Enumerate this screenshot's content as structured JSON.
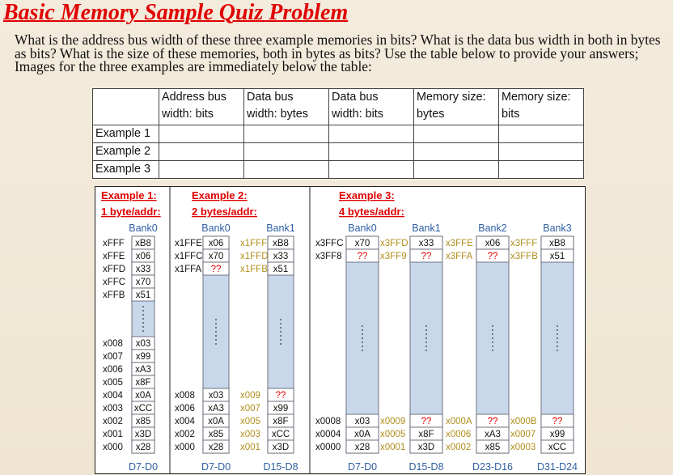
{
  "title": "Basic Memory Sample Quiz Problem",
  "question": "What is the address bus width of these three example memories in bits?  What is the data bus width in both in bytes as bits?  What is the size of these memories, both in bytes as bits?  Use the table below to provide your answers; Images for the three examples are immediately below the table:",
  "answer_table": {
    "headers": [
      [
        "Address bus",
        "width: bits"
      ],
      [
        "Data bus",
        "width: bytes"
      ],
      [
        "Data bus",
        "width: bits"
      ],
      [
        "Memory size:",
        "bytes"
      ],
      [
        "Memory size:",
        "bits"
      ]
    ],
    "rows": [
      "Example 1",
      "Example 2",
      "Example 3"
    ]
  },
  "colors": {
    "accent_red": "#e00000",
    "bank_fill": "#c8d8ea",
    "label_blue": "#2e5fa3",
    "address_gold": "#b08f1c"
  },
  "examples": [
    {
      "title_line1": "Example 1:",
      "title_line2": "1 byte/addr:",
      "banks": [
        {
          "name": "Bank0",
          "bus": "D7-D0",
          "top": [
            {
              "addr": "xFFF",
              "val": "xB8"
            },
            {
              "addr": "xFFE",
              "val": "x06"
            },
            {
              "addr": "xFFD",
              "val": "x33"
            },
            {
              "addr": "xFFC",
              "val": "x70"
            },
            {
              "addr": "xFFB",
              "val": "x51"
            }
          ],
          "bottom": [
            {
              "addr": "x008",
              "val": "x03"
            },
            {
              "addr": "x007",
              "val": "x99"
            },
            {
              "addr": "x006",
              "val": "xA3"
            },
            {
              "addr": "x005",
              "val": "x8F"
            },
            {
              "addr": "x004",
              "val": "x0A"
            },
            {
              "addr": "x003",
              "val": "xCC"
            },
            {
              "addr": "x002",
              "val": "x85"
            },
            {
              "addr": "x001",
              "val": "x3D"
            },
            {
              "addr": "x000",
              "val": "x28"
            }
          ]
        }
      ]
    },
    {
      "title_line1": "Example 2:",
      "title_line2": "2 bytes/addr:",
      "banks": [
        {
          "name": "Bank0",
          "bus": "D7-D0",
          "top": [
            {
              "addr": "x1FFE",
              "val": "x06"
            },
            {
              "addr": "x1FFC",
              "val": "x70"
            },
            {
              "addr": "x1FFA",
              "val": "??"
            }
          ],
          "bottom": [
            {
              "addr": "x008",
              "val": "x03"
            },
            {
              "addr": "x006",
              "val": "xA3"
            },
            {
              "addr": "x004",
              "val": "x0A"
            },
            {
              "addr": "x002",
              "val": "x85"
            },
            {
              "addr": "x000",
              "val": "x28"
            }
          ]
        },
        {
          "name": "Bank1",
          "bus": "D15-D8",
          "top": [
            {
              "addr": "x1FFF",
              "val": "xB8"
            },
            {
              "addr": "x1FFD",
              "val": "x33"
            },
            {
              "addr": "x1FFB",
              "val": "x51"
            }
          ],
          "bottom": [
            {
              "addr": "x009",
              "val": "??"
            },
            {
              "addr": "x007",
              "val": "x99"
            },
            {
              "addr": "x005",
              "val": "x8F"
            },
            {
              "addr": "x003",
              "val": "xCC"
            },
            {
              "addr": "x001",
              "val": "x3D"
            }
          ]
        }
      ]
    },
    {
      "title_line1": "Example 3:",
      "title_line2": "4 bytes/addr:",
      "banks": [
        {
          "name": "Bank0",
          "bus": "D7-D0",
          "top": [
            {
              "addr": "x3FFC",
              "val": "x70"
            },
            {
              "addr": "x3FF8",
              "val": "??"
            }
          ],
          "bottom": [
            {
              "addr": "x0008",
              "val": "x03"
            },
            {
              "addr": "x0004",
              "val": "x0A"
            },
            {
              "addr": "x0000",
              "val": "x28"
            }
          ]
        },
        {
          "name": "Bank1",
          "bus": "D15-D8",
          "top": [
            {
              "addr": "x3FFD",
              "val": "x33"
            },
            {
              "addr": "x3FF9",
              "val": "??"
            }
          ],
          "bottom": [
            {
              "addr": "x0009",
              "val": "??"
            },
            {
              "addr": "x0005",
              "val": "x8F"
            },
            {
              "addr": "x0001",
              "val": "x3D"
            }
          ]
        },
        {
          "name": "Bank2",
          "bus": "D23-D16",
          "top": [
            {
              "addr": "x3FFE",
              "val": "x06"
            },
            {
              "addr": "x3FFA",
              "val": "??"
            }
          ],
          "bottom": [
            {
              "addr": "x000A",
              "val": "??"
            },
            {
              "addr": "x0006",
              "val": "xA3"
            },
            {
              "addr": "x0002",
              "val": "x85"
            }
          ]
        },
        {
          "name": "Bank3",
          "bus": "D31-D24",
          "top": [
            {
              "addr": "x3FFF",
              "val": "xB8"
            },
            {
              "addr": "x3FFB",
              "val": "x51"
            }
          ],
          "bottom": [
            {
              "addr": "x000B",
              "val": "??"
            },
            {
              "addr": "x0007",
              "val": "x99"
            },
            {
              "addr": "x0003",
              "val": "xCC"
            }
          ]
        }
      ]
    }
  ]
}
